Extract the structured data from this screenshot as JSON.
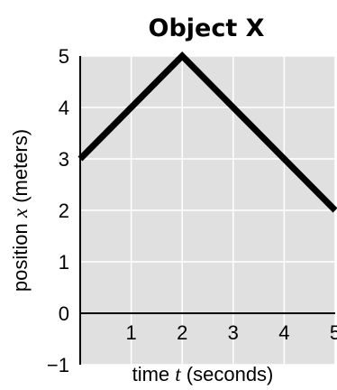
{
  "chart_data": {
    "type": "line",
    "title": "Object X",
    "xlabel": {
      "prefix": "time ",
      "variable": "t",
      "suffix": " (seconds)"
    },
    "ylabel": {
      "prefix": "position ",
      "variable": "x",
      "suffix": " (meters)"
    },
    "xlim": [
      0,
      5
    ],
    "ylim": [
      -1,
      5
    ],
    "xticks": [
      "1",
      "2",
      "3",
      "4",
      "5"
    ],
    "yticks": [
      "5",
      "4",
      "3",
      "2",
      "1",
      "0",
      "−1"
    ],
    "grid": true,
    "series": [
      {
        "x": [
          0,
          2,
          5
        ],
        "y": [
          3,
          5,
          2
        ]
      }
    ]
  },
  "colors": {
    "plot_background": "#e0e0e0",
    "grid": "#ffffff",
    "line": "#000000"
  }
}
